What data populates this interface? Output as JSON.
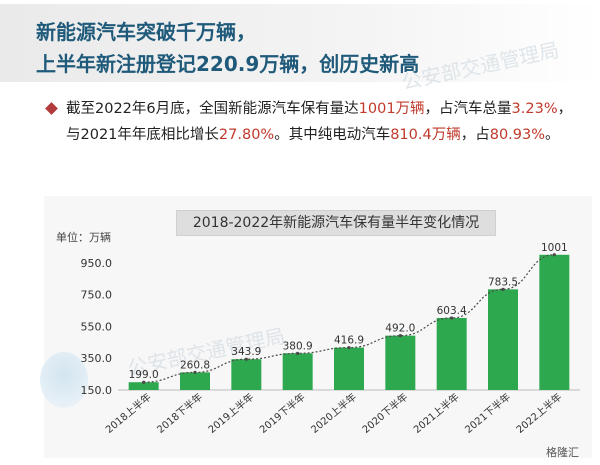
{
  "header": {
    "line1": "新能源汽车突破千万辆，",
    "line2": "上半年新注册登记220.9万辆，创历史新高"
  },
  "summary": {
    "s1": "截至2022年6月底，全国新能源汽车保有量达",
    "h1": "1001万辆",
    "s2": "，占汽车总量",
    "h2": "3.23%",
    "s3": "，与2021年年底相比增长",
    "h3": "27.80%",
    "s4": "。其中纯电动汽车",
    "h4": "810.4万辆",
    "s5": "，占",
    "h5": "80.93%",
    "s6": "。"
  },
  "watermark": {
    "text": "公安部交通管理局"
  },
  "footer": {
    "logo_text": "格隆汇"
  },
  "colors": {
    "bar": "#2ea84e",
    "trend": "#4a4a4a",
    "title": "#1f5a7a",
    "highlight": "#c0392b"
  },
  "chart_data": {
    "type": "bar",
    "title": "2018-2022年新能源汽车保有量半年变化情况",
    "unit_label": "单位：万辆",
    "categories": [
      "2018上半年",
      "2018下半年",
      "2019上半年",
      "2019下半年",
      "2020上半年",
      "2020下半年",
      "2021上半年",
      "2021下半年",
      "2022上半年"
    ],
    "values": [
      199.0,
      260.8,
      343.9,
      380.9,
      416.9,
      492.0,
      603.4,
      783.5,
      1001
    ],
    "value_labels": [
      "199.0",
      "260.8",
      "343.9",
      "380.9",
      "416.9",
      "492.0",
      "603.4",
      "783.5",
      "1001"
    ],
    "yticks": [
      150.0,
      350.0,
      550.0,
      750.0,
      950.0
    ],
    "ytick_labels": [
      "150.0",
      "350.0",
      "550.0",
      "750.0",
      "950.0"
    ],
    "ylim": [
      150,
      1050
    ],
    "trend_line": true,
    "grid": false,
    "legend": "none"
  }
}
